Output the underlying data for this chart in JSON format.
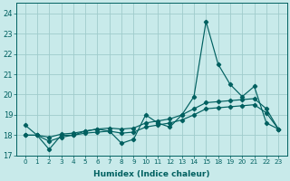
{
  "xlabel": "Humidex (Indice chaleur)",
  "bg_color": "#c8eaea",
  "line_color": "#006060",
  "grid_color": "#a0cccc",
  "ylim": [
    17.0,
    24.5
  ],
  "yticks": [
    17,
    18,
    19,
    20,
    21,
    22,
    23,
    24
  ],
  "x_indices": [
    0,
    1,
    2,
    3,
    4,
    5,
    6,
    7,
    8,
    9,
    10,
    11,
    12,
    13,
    14,
    15,
    16,
    17,
    18,
    19,
    20,
    21
  ],
  "x_labels": [
    "0",
    "1",
    "2",
    "3",
    "4",
    "5",
    "6",
    "7",
    "8",
    "9",
    "10",
    "11",
    "12",
    "13",
    "14",
    "15",
    "18",
    "19",
    "20",
    "21",
    "22",
    "23"
  ],
  "line1_y": [
    18.5,
    18.0,
    17.3,
    18.0,
    18.0,
    18.2,
    18.3,
    18.2,
    17.6,
    17.8,
    19.0,
    18.6,
    18.4,
    19.0,
    19.9,
    23.6,
    21.5,
    20.5,
    19.9,
    20.4,
    18.6,
    18.3
  ],
  "line2_y": [
    18.0,
    18.0,
    17.9,
    18.05,
    18.1,
    18.2,
    18.3,
    18.35,
    18.3,
    18.35,
    18.6,
    18.7,
    18.8,
    19.0,
    19.3,
    19.6,
    19.65,
    19.7,
    19.75,
    19.8,
    19.3,
    18.3
  ],
  "line3_y": [
    18.0,
    18.0,
    17.7,
    17.9,
    18.0,
    18.1,
    18.15,
    18.2,
    18.1,
    18.15,
    18.4,
    18.5,
    18.6,
    18.75,
    19.0,
    19.3,
    19.35,
    19.4,
    19.45,
    19.5,
    19.1,
    18.3
  ]
}
